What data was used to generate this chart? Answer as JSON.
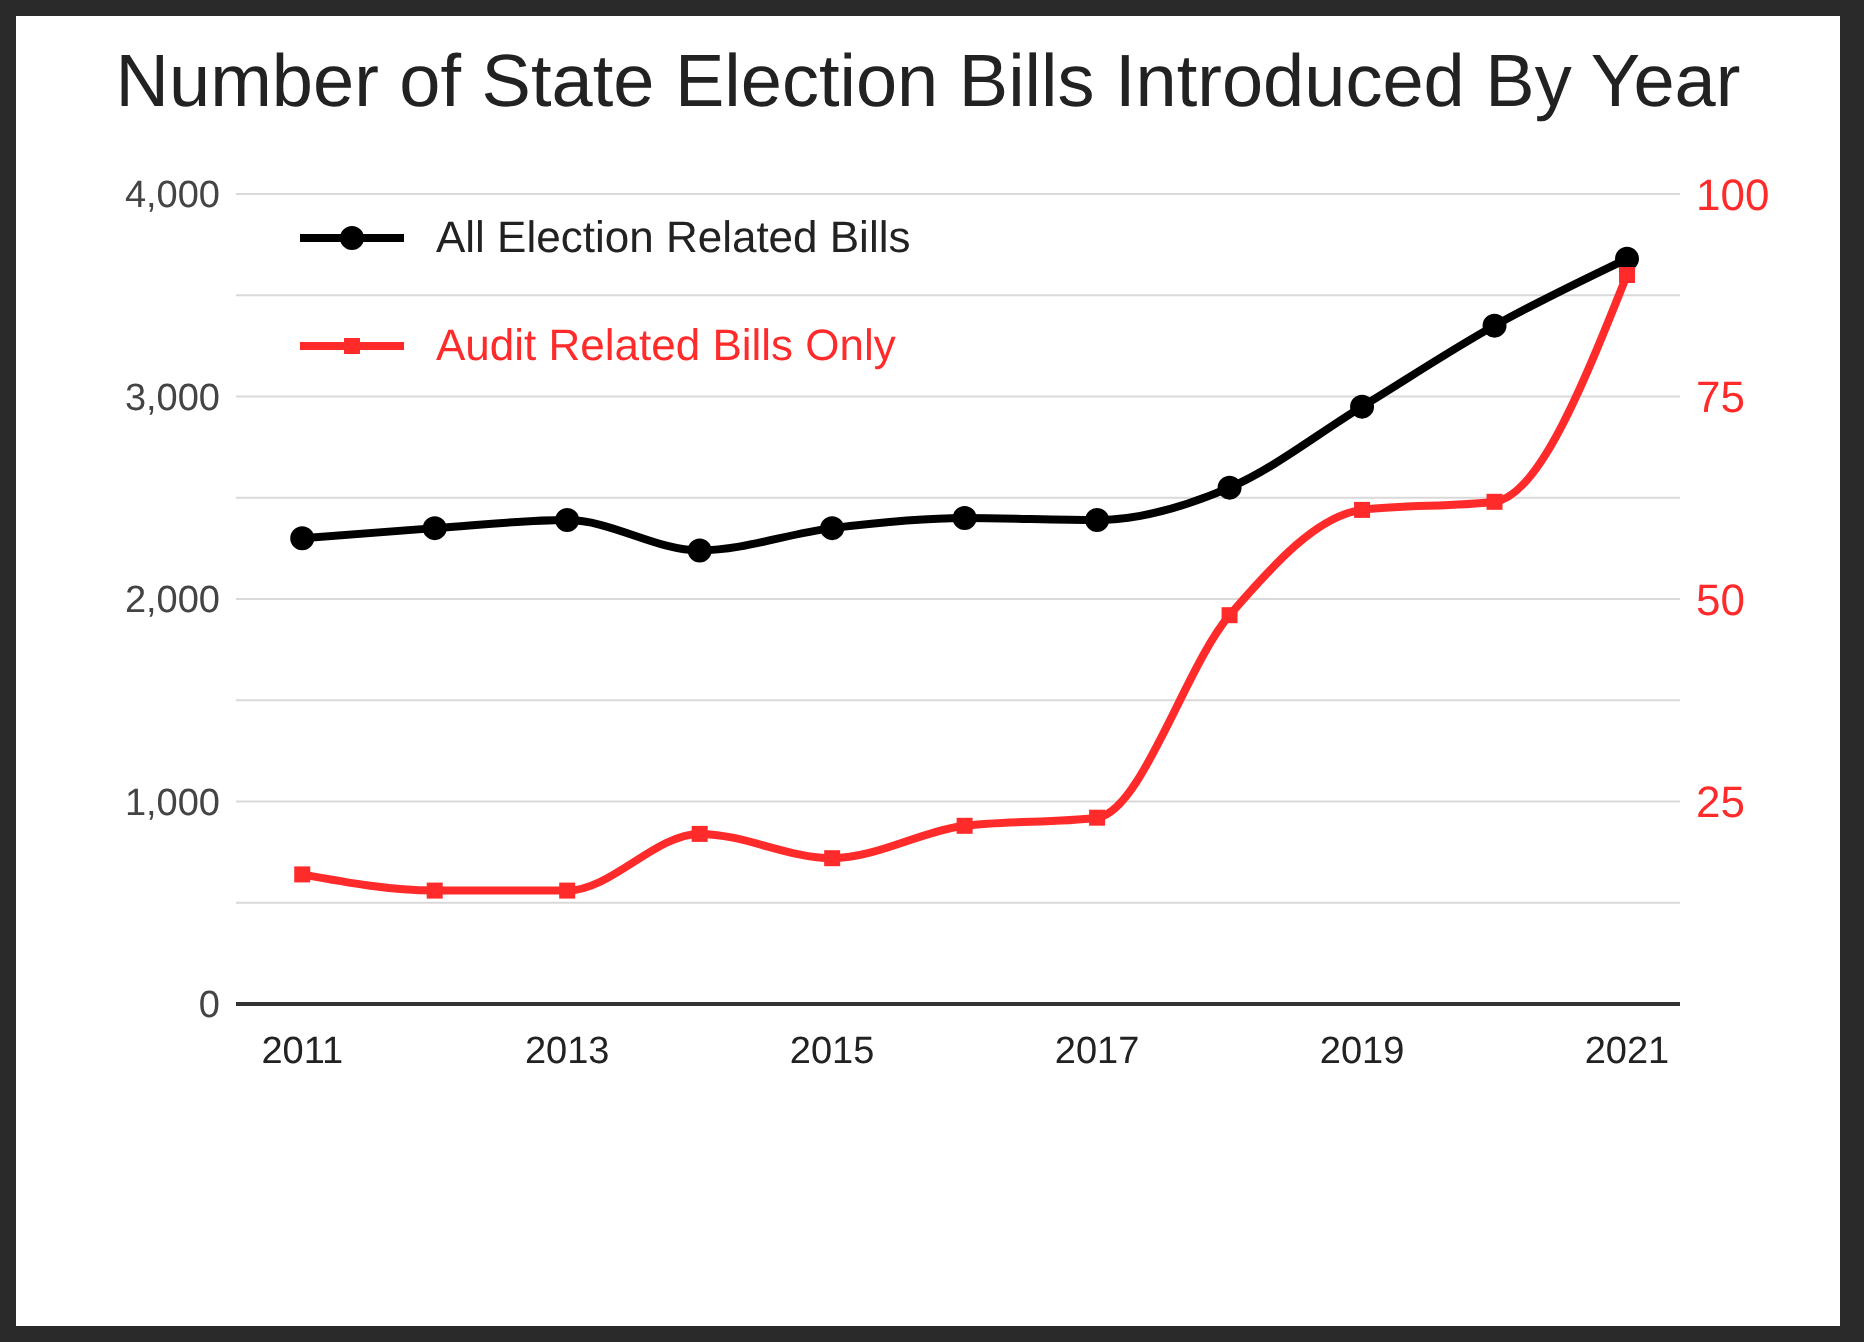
{
  "chart_data": {
    "type": "line",
    "title": "Number of State Election Bills Introduced By Year",
    "x": [
      2011,
      2012,
      2013,
      2014,
      2015,
      2016,
      2017,
      2018,
      2019,
      2020,
      2021
    ],
    "xlim": [
      2010.5,
      2021.4
    ],
    "xticks": [
      {
        "value": 2011,
        "label": "2011"
      },
      {
        "value": 2013,
        "label": "2013"
      },
      {
        "value": 2015,
        "label": "2015"
      },
      {
        "value": 2017,
        "label": "2017"
      },
      {
        "value": 2019,
        "label": "2019"
      },
      {
        "value": 2021,
        "label": "2021"
      }
    ],
    "ylim": [
      0,
      4000
    ],
    "yticks": [
      0,
      {
        "value": 500,
        "label": null
      },
      {
        "value": 1000,
        "label": "1,000"
      },
      {
        "value": 1500,
        "label": null
      },
      {
        "value": 2000,
        "label": "2,000"
      },
      {
        "value": 2500,
        "label": null
      },
      {
        "value": 3000,
        "label": "3,000"
      },
      {
        "value": 3500,
        "label": null
      },
      {
        "value": 4000,
        "label": "4,000"
      }
    ],
    "y2lim": [
      0,
      100
    ],
    "y2ticks": [
      25,
      50,
      75,
      100
    ],
    "series": [
      {
        "name": "All Election Related Bills",
        "color": "#000000",
        "marker": "circle",
        "values": [
          2300,
          2350,
          2390,
          2240,
          2350,
          2400,
          2390,
          2550,
          2950,
          3350,
          3680
        ]
      },
      {
        "name": "Audit Related Bills Only",
        "color": "#ff2b2b",
        "marker": "square",
        "axis": "y2",
        "values": [
          16,
          14,
          14,
          21,
          18,
          22,
          23,
          48,
          61,
          62,
          90
        ]
      }
    ],
    "grid": "y",
    "legend": "top left"
  }
}
